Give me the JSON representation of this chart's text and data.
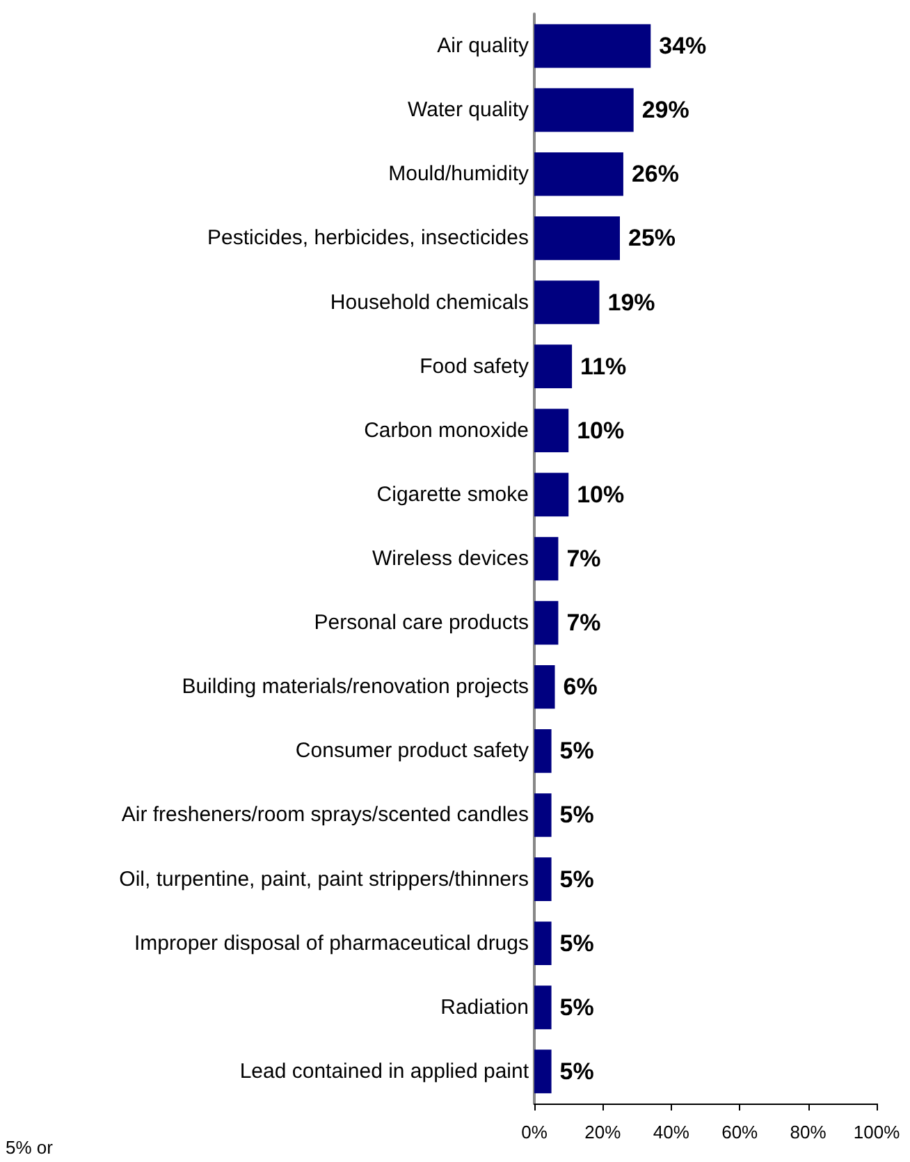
{
  "chart_data": {
    "type": "bar",
    "orientation": "horizontal",
    "categories": [
      "Air quality",
      "Water quality",
      "Mould/humidity",
      "Pesticides, herbicides, insecticides",
      "Household chemicals",
      "Food safety",
      "Carbon monoxide",
      "Cigarette smoke",
      "Wireless devices",
      "Personal care products",
      "Building materials/renovation projects",
      "Consumer product safety",
      "Air fresheners/room sprays/scented candles",
      "Oil, turpentine, paint, paint strippers/thinners",
      "Improper disposal of pharmaceutical drugs",
      "Radiation",
      "Lead contained in applied paint"
    ],
    "values": [
      34,
      29,
      26,
      25,
      19,
      11,
      10,
      10,
      7,
      7,
      6,
      5,
      5,
      5,
      5,
      5,
      5
    ],
    "value_labels": [
      "34%",
      "29%",
      "26%",
      "25%",
      "19%",
      "11%",
      "10%",
      "10%",
      "7%",
      "7%",
      "6%",
      "5%",
      "5%",
      "5%",
      "5%",
      "5%",
      "5%"
    ],
    "color": "#000080",
    "xlim": [
      0,
      100
    ],
    "xticks": [
      {
        "value": 0,
        "label": "0%"
      },
      {
        "value": 20,
        "label": "20%"
      },
      {
        "value": 40,
        "label": "40%"
      },
      {
        "value": 60,
        "label": "60%"
      },
      {
        "value": 80,
        "label": "80%"
      },
      {
        "value": 100,
        "label": "100%"
      }
    ],
    "grid": false,
    "annotations": [
      "5% or"
    ]
  }
}
